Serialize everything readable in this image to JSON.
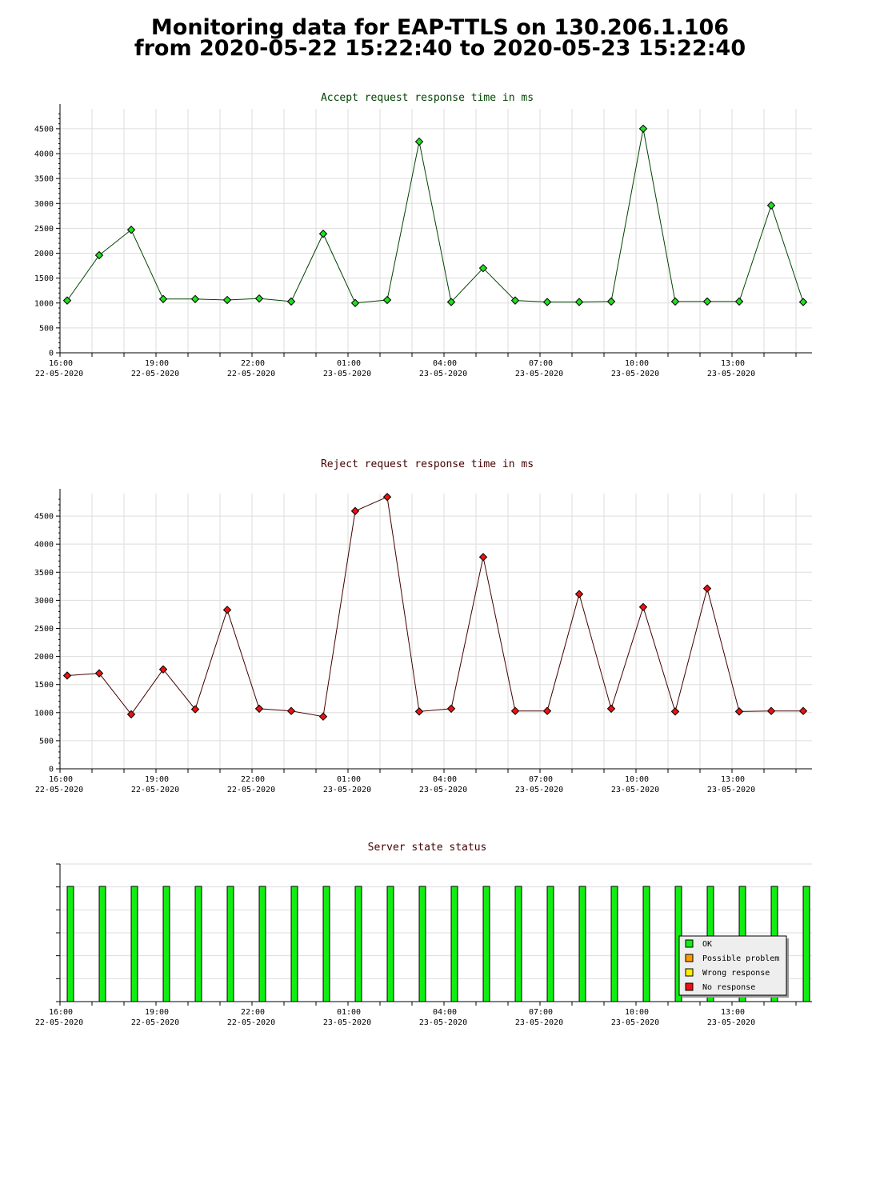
{
  "page_title": {
    "line1": "Monitoring data for EAP-TTLS on 130.206.1.106",
    "line2": "from 2020-05-22 15:22:40 to 2020-05-23 15:22:40"
  },
  "colors": {
    "accept_line": "#004400",
    "accept_point": "#22dd22",
    "reject_line": "#440000",
    "reject_point": "#ee1111",
    "ok": "#11ee11",
    "possible_problem": "#ff9900",
    "wrong_response": "#ffee00",
    "no_response": "#ee1111",
    "grid": "#dddddd"
  },
  "chart_data": [
    {
      "type": "line",
      "title": "Accept request response time in ms",
      "title_color": "#004400",
      "ylim": [
        0,
        4900
      ],
      "y_ticks": [
        0,
        500,
        1000,
        1500,
        2000,
        2500,
        3000,
        3500,
        4000,
        4500
      ],
      "x_ticks": [
        {
          "time": "16:00",
          "date": "22-05-2020"
        },
        {
          "time": "19:00",
          "date": "22-05-2020"
        },
        {
          "time": "22:00",
          "date": "22-05-2020"
        },
        {
          "time": "01:00",
          "date": "23-05-2020"
        },
        {
          "time": "04:00",
          "date": "23-05-2020"
        },
        {
          "time": "07:00",
          "date": "23-05-2020"
        },
        {
          "time": "10:00",
          "date": "23-05-2020"
        },
        {
          "time": "13:00",
          "date": "23-05-2020"
        }
      ],
      "grid": true,
      "values": [
        1050,
        1960,
        2470,
        1080,
        1080,
        1060,
        1090,
        1030,
        2390,
        1000,
        1060,
        4240,
        1020,
        1700,
        1050,
        1020,
        1020,
        1030,
        4500,
        1030,
        1030,
        1030,
        2960,
        1020
      ]
    },
    {
      "type": "line",
      "title": "Reject request response time in ms",
      "title_color": "#440000",
      "ylim": [
        0,
        4900
      ],
      "y_ticks": [
        0,
        500,
        1000,
        1500,
        2000,
        2500,
        3000,
        3500,
        4000,
        4500
      ],
      "x_ticks": [
        {
          "time": "16:00",
          "date": "22-05-2020"
        },
        {
          "time": "19:00",
          "date": "22-05-2020"
        },
        {
          "time": "22:00",
          "date": "22-05-2020"
        },
        {
          "time": "01:00",
          "date": "23-05-2020"
        },
        {
          "time": "04:00",
          "date": "23-05-2020"
        },
        {
          "time": "07:00",
          "date": "23-05-2020"
        },
        {
          "time": "10:00",
          "date": "23-05-2020"
        },
        {
          "time": "13:00",
          "date": "23-05-2020"
        }
      ],
      "grid": true,
      "values": [
        1660,
        1700,
        970,
        1770,
        1060,
        2830,
        1070,
        1030,
        930,
        4590,
        4840,
        1020,
        1070,
        3770,
        1030,
        1030,
        3110,
        1070,
        2880,
        1020,
        3210,
        1020,
        1030,
        1030
      ]
    },
    {
      "type": "bar",
      "title": "Server state status",
      "title_color": "#440000",
      "x_ticks": [
        {
          "time": "16:00",
          "date": "22-05-2020"
        },
        {
          "time": "19:00",
          "date": "22-05-2020"
        },
        {
          "time": "22:00",
          "date": "22-05-2020"
        },
        {
          "time": "01:00",
          "date": "23-05-2020"
        },
        {
          "time": "04:00",
          "date": "23-05-2020"
        },
        {
          "time": "07:00",
          "date": "23-05-2020"
        },
        {
          "time": "10:00",
          "date": "23-05-2020"
        },
        {
          "time": "13:00",
          "date": "23-05-2020"
        }
      ],
      "states": [
        "OK",
        "OK",
        "OK",
        "OK",
        "OK",
        "OK",
        "OK",
        "OK",
        "OK",
        "OK",
        "OK",
        "OK",
        "OK",
        "OK",
        "OK",
        "OK",
        "OK",
        "OK",
        "OK",
        "OK",
        "OK",
        "OK",
        "OK",
        "OK"
      ],
      "legend_position": "bottom-right",
      "legend": [
        {
          "label": "OK",
          "color": "#11ee11"
        },
        {
          "label": "Possible problem",
          "color": "#ff9900"
        },
        {
          "label": "Wrong response",
          "color": "#ffee00"
        },
        {
          "label": "No response",
          "color": "#ee1111"
        }
      ]
    }
  ]
}
